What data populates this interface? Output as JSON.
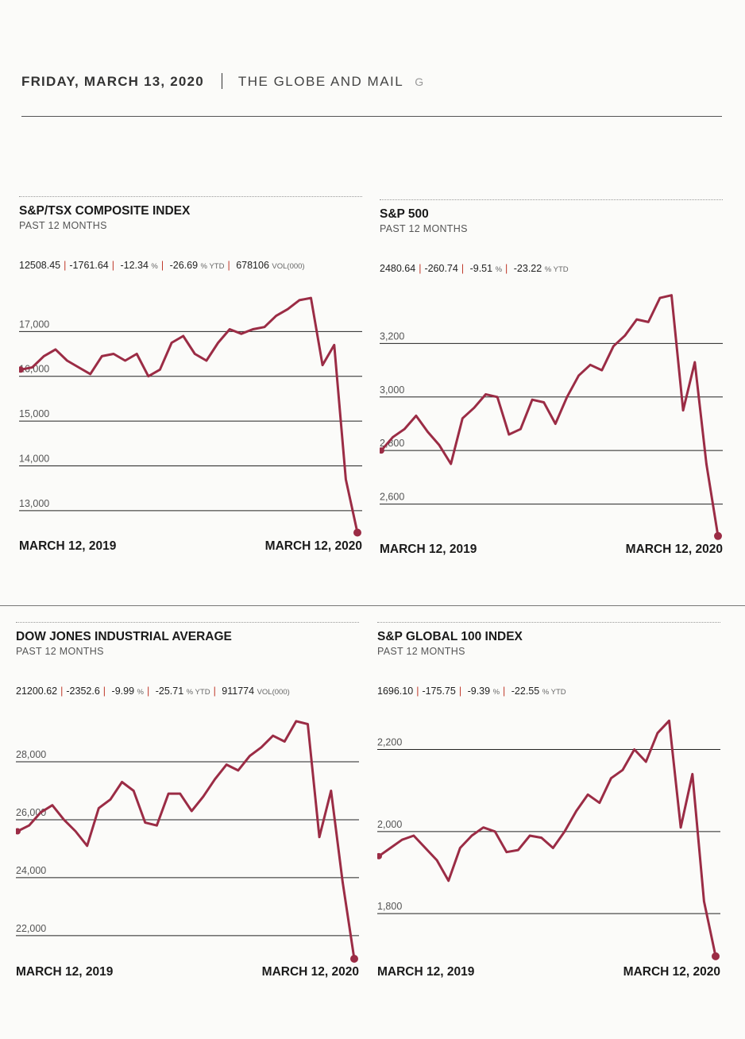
{
  "header": {
    "date": "FRIDAY, MARCH 13, 2020",
    "publication": "THE GLOBE AND MAIL",
    "logo_glyph": "G"
  },
  "colors": {
    "line": "#9b2c45",
    "grid": "#222222",
    "accent": "#c0392b"
  },
  "panels": [
    {
      "title": "S&P/TSX COMPOSITE INDEX",
      "subtitle": "PAST 12 MONTHS",
      "stats": {
        "last": "12508.45",
        "change": "-1761.64",
        "pct": "-12.34",
        "pct_unit": "%",
        "ytd": "-26.69",
        "ytd_unit": "% YTD",
        "vol": "678106",
        "vol_unit": "VOL(000)"
      },
      "start_label": "MARCH 12, 2019",
      "end_label": "MARCH 12, 2020"
    },
    {
      "title": "S&P 500",
      "subtitle": "PAST 12 MONTHS",
      "stats": {
        "last": "2480.64",
        "change": "-260.74",
        "pct": "-9.51",
        "pct_unit": "%",
        "ytd": "-23.22",
        "ytd_unit": "% YTD"
      },
      "start_label": "MARCH 12, 2019",
      "end_label": "MARCH 12, 2020"
    },
    {
      "title": "DOW JONES INDUSTRIAL AVERAGE",
      "subtitle": "PAST 12 MONTHS",
      "stats": {
        "last": "21200.62",
        "change": "-2352.6",
        "pct": "-9.99",
        "pct_unit": "%",
        "ytd": "-25.71",
        "ytd_unit": "% YTD",
        "vol": "911774",
        "vol_unit": "VOL(000)"
      },
      "start_label": "MARCH 12, 2019",
      "end_label": "MARCH 12, 2020"
    },
    {
      "title": "S&P GLOBAL 100 INDEX",
      "subtitle": "PAST 12 MONTHS",
      "stats": {
        "last": "1696.10",
        "change": "-175.75",
        "pct": "-9.39",
        "pct_unit": "%",
        "ytd": "-22.55",
        "ytd_unit": "% YTD"
      },
      "start_label": "MARCH 12, 2019",
      "end_label": "MARCH 12, 2020"
    }
  ],
  "chart_data": [
    {
      "type": "line",
      "title": "S&P/TSX COMPOSITE INDEX",
      "x": [
        "2019-03-12",
        "2019-03-26",
        "2019-04-09",
        "2019-04-23",
        "2019-05-07",
        "2019-05-21",
        "2019-06-04",
        "2019-06-18",
        "2019-07-02",
        "2019-07-16",
        "2019-07-30",
        "2019-08-13",
        "2019-08-27",
        "2019-09-10",
        "2019-09-24",
        "2019-10-08",
        "2019-10-22",
        "2019-11-05",
        "2019-11-19",
        "2019-12-03",
        "2019-12-17",
        "2019-12-31",
        "2020-01-14",
        "2020-01-28",
        "2020-02-11",
        "2020-02-20",
        "2020-02-28",
        "2020-03-04",
        "2020-03-09",
        "2020-03-12"
      ],
      "values": [
        16150,
        16200,
        16450,
        16600,
        16350,
        16200,
        16050,
        16450,
        16500,
        16350,
        16500,
        16000,
        16150,
        16750,
        16900,
        16500,
        16350,
        16750,
        17050,
        16950,
        17050,
        17100,
        17350,
        17500,
        17700,
        17750,
        16250,
        16700,
        13700,
        12508.45
      ],
      "ylim": [
        12500,
        18000
      ],
      "yticks": [
        13000,
        14000,
        15000,
        16000,
        17000
      ],
      "ytick_labels": [
        "13,000",
        "14,000",
        "15,000",
        "16,000",
        "17,000"
      ],
      "grid": true
    },
    {
      "type": "line",
      "title": "S&P 500",
      "x": [
        "2019-03-12",
        "2019-03-26",
        "2019-04-09",
        "2019-04-23",
        "2019-05-07",
        "2019-05-21",
        "2019-06-04",
        "2019-06-18",
        "2019-07-02",
        "2019-07-16",
        "2019-07-30",
        "2019-08-13",
        "2019-08-27",
        "2019-09-10",
        "2019-09-24",
        "2019-10-08",
        "2019-10-22",
        "2019-11-05",
        "2019-11-19",
        "2019-12-03",
        "2019-12-17",
        "2019-12-31",
        "2020-01-14",
        "2020-01-28",
        "2020-02-11",
        "2020-02-20",
        "2020-02-28",
        "2020-03-04",
        "2020-03-09",
        "2020-03-12"
      ],
      "values": [
        2800,
        2850,
        2880,
        2930,
        2870,
        2820,
        2750,
        2920,
        2960,
        3010,
        3000,
        2860,
        2880,
        2990,
        2980,
        2900,
        3000,
        3080,
        3120,
        3100,
        3190,
        3230,
        3290,
        3280,
        3370,
        3380,
        2950,
        3130,
        2750,
        2480.64
      ],
      "ylim": [
        2480,
        3400
      ],
      "yticks": [
        2600,
        2800,
        3000,
        3200
      ],
      "ytick_labels": [
        "2,600",
        "2,800",
        "3,000",
        "3,200"
      ],
      "grid": true
    },
    {
      "type": "line",
      "title": "DOW JONES INDUSTRIAL AVERAGE",
      "x": [
        "2019-03-12",
        "2019-03-26",
        "2019-04-09",
        "2019-04-23",
        "2019-05-07",
        "2019-05-21",
        "2019-06-04",
        "2019-06-18",
        "2019-07-02",
        "2019-07-16",
        "2019-07-30",
        "2019-08-13",
        "2019-08-27",
        "2019-09-10",
        "2019-09-24",
        "2019-10-08",
        "2019-10-22",
        "2019-11-05",
        "2019-11-19",
        "2019-12-03",
        "2019-12-17",
        "2019-12-31",
        "2020-01-14",
        "2020-01-28",
        "2020-02-11",
        "2020-02-20",
        "2020-02-28",
        "2020-03-04",
        "2020-03-09",
        "2020-03-12"
      ],
      "values": [
        25600,
        25800,
        26250,
        26500,
        26000,
        25600,
        25100,
        26400,
        26700,
        27300,
        27000,
        25900,
        25800,
        26900,
        26900,
        26300,
        26800,
        27400,
        27900,
        27700,
        28200,
        28500,
        28900,
        28700,
        29400,
        29300,
        25400,
        27000,
        23850,
        21200.62
      ],
      "ylim": [
        21200,
        29700
      ],
      "yticks": [
        22000,
        24000,
        26000,
        28000
      ],
      "ytick_labels": [
        "22,000",
        "24,000",
        "26,000",
        "28,000"
      ],
      "grid": true
    },
    {
      "type": "line",
      "title": "S&P GLOBAL 100 INDEX",
      "x": [
        "2019-03-12",
        "2019-03-26",
        "2019-04-09",
        "2019-04-23",
        "2019-05-07",
        "2019-05-21",
        "2019-06-04",
        "2019-06-18",
        "2019-07-02",
        "2019-07-16",
        "2019-07-30",
        "2019-08-13",
        "2019-08-27",
        "2019-09-10",
        "2019-09-24",
        "2019-10-08",
        "2019-10-22",
        "2019-11-05",
        "2019-11-19",
        "2019-12-03",
        "2019-12-17",
        "2019-12-31",
        "2020-01-14",
        "2020-01-28",
        "2020-02-11",
        "2020-02-20",
        "2020-02-28",
        "2020-03-04",
        "2020-03-09",
        "2020-03-12"
      ],
      "values": [
        1940,
        1960,
        1980,
        1990,
        1960,
        1930,
        1880,
        1960,
        1990,
        2010,
        2000,
        1950,
        1955,
        1990,
        1985,
        1960,
        2000,
        2050,
        2090,
        2070,
        2130,
        2150,
        2200,
        2170,
        2240,
        2270,
        2010,
        2140,
        1830,
        1696.1
      ],
      "ylim": [
        1690,
        2290
      ],
      "yticks": [
        1800,
        2000,
        2200
      ],
      "ytick_labels": [
        "1,800",
        "2,000",
        "2,200"
      ],
      "grid": true
    }
  ]
}
